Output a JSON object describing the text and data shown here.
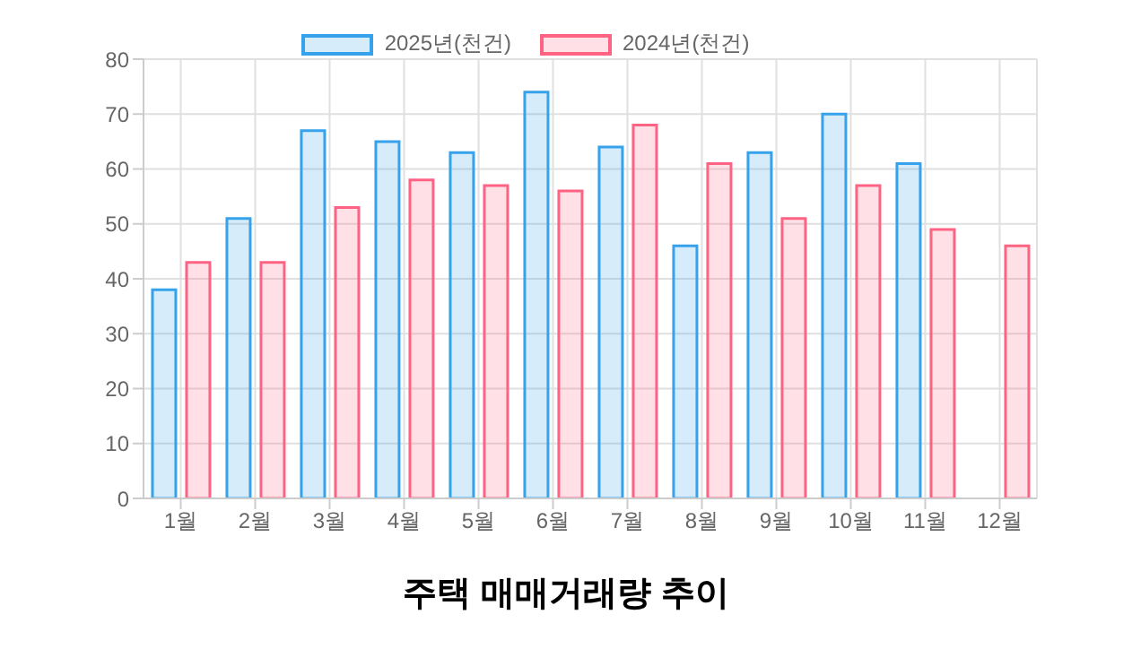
{
  "chart_data": {
    "type": "bar",
    "title": "주택 매매거래량 추이",
    "categories": [
      "1월",
      "2월",
      "3월",
      "4월",
      "5월",
      "6월",
      "7월",
      "8월",
      "9월",
      "10월",
      "11월",
      "12월"
    ],
    "series": [
      {
        "name": "2025년(천건)",
        "color": "#36a2eb",
        "values": [
          38,
          51,
          67,
          65,
          63,
          74,
          64,
          46,
          63,
          70,
          61,
          null
        ]
      },
      {
        "name": "2024년(천건)",
        "color": "#ff6384",
        "values": [
          43,
          43,
          53,
          58,
          57,
          56,
          68,
          61,
          51,
          57,
          49,
          46
        ]
      }
    ],
    "ylim": [
      0,
      80
    ],
    "yticks": [
      0,
      10,
      20,
      30,
      40,
      50,
      60,
      70,
      80
    ],
    "grid": true,
    "legend": "top"
  }
}
